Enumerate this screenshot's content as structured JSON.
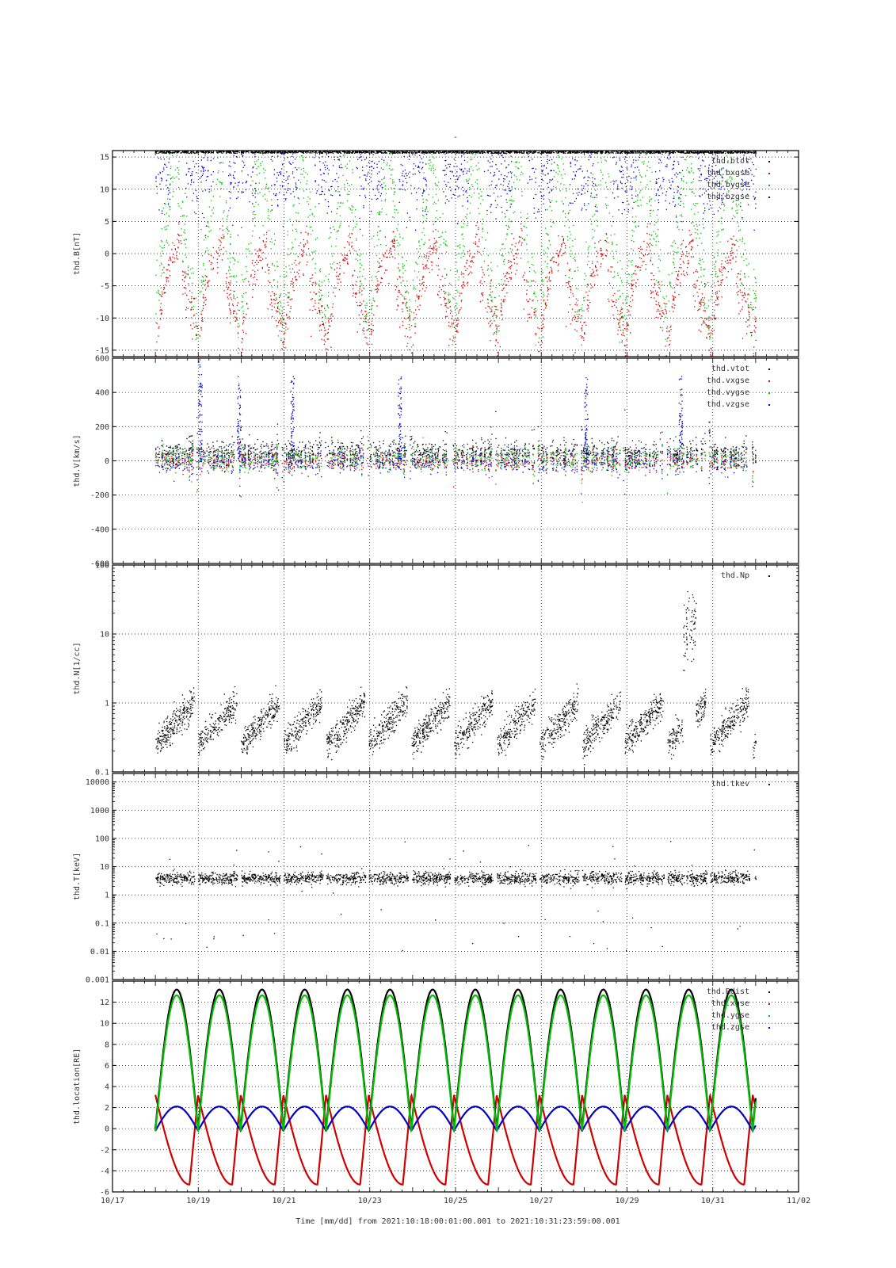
{
  "figure": {
    "title": "-",
    "time_axis": {
      "label": "Time [mm/dd]  from 2021:10:18:00:01:00.001  to  2021:10:31:23:59:00.001",
      "range_days": [
        0,
        16
      ],
      "tick_labels": [
        "10/17",
        "10/19",
        "10/21",
        "10/23",
        "10/25",
        "10/27",
        "10/29",
        "10/31",
        "11/02"
      ],
      "data_start_day": 1.0,
      "data_end_day": 15.0
    },
    "colors": {
      "black": "#000000",
      "red": "#d00000",
      "green": "#00c000",
      "blue": "#0000c8"
    }
  },
  "chart_data": [
    {
      "type": "scatter",
      "ylabel": "thd.B[nT]",
      "ylim": [
        -16,
        16
      ],
      "yticks": [
        -15,
        -10,
        -5,
        0,
        5,
        10,
        15
      ],
      "ytick_labels": [
        "-15",
        "-10",
        "-5",
        "0",
        "5",
        "10",
        "15"
      ],
      "grid": true,
      "legend_position": "top-right",
      "series": [
        {
          "name": "thd.btot",
          "color": "#000000",
          "values_note": "mostly above 16 nT (clipped at top)"
        },
        {
          "name": "thd.bxgse",
          "color": "#d00000"
        },
        {
          "name": "thd.bygse",
          "color": "#00c000"
        },
        {
          "name": "thd.bzgse",
          "color": "#0000c8"
        }
      ]
    },
    {
      "type": "scatter",
      "ylabel": "thd.V[km/s]",
      "ylim": [
        -600,
        600
      ],
      "yticks": [
        -600,
        -400,
        -200,
        0,
        200,
        400,
        600
      ],
      "ytick_labels": [
        "-600",
        "-400",
        "-200",
        "0",
        "200",
        "400",
        "600"
      ],
      "grid": true,
      "legend_position": "top-right",
      "series": [
        {
          "name": "thd.vtot",
          "color": "#000000"
        },
        {
          "name": "thd.vxgse",
          "color": "#d00000"
        },
        {
          "name": "thd.vygse",
          "color": "#00c000"
        },
        {
          "name": "thd.vzgse",
          "color": "#0000c8"
        }
      ]
    },
    {
      "type": "scatter",
      "ylabel": "thd.N[1/cc]",
      "yscale": "log",
      "ylim": [
        0.1,
        100
      ],
      "yticks": [
        0.1,
        1,
        10,
        100
      ],
      "ytick_labels": [
        "0.1",
        "1",
        "10",
        "100"
      ],
      "grid": true,
      "legend_position": "top-right",
      "series": [
        {
          "name": "thd.Np",
          "color": "#000000"
        }
      ]
    },
    {
      "type": "scatter",
      "ylabel": "thd.T[keV]",
      "yscale": "log",
      "ylim": [
        0.001,
        20000
      ],
      "yticks": [
        0.001,
        0.01,
        0.1,
        1,
        10,
        100,
        1000,
        10000
      ],
      "ytick_labels": [
        "0.001",
        "0.01",
        "0.1",
        "1",
        "10",
        "100",
        "1000",
        "10000"
      ],
      "grid": true,
      "legend_position": "top-right",
      "series": [
        {
          "name": "thd.tkev",
          "color": "#000000"
        }
      ]
    },
    {
      "type": "line",
      "ylabel": "thd.location[RE]",
      "ylim": [
        -6,
        14
      ],
      "yticks": [
        -6,
        -4,
        -2,
        0,
        2,
        4,
        6,
        8,
        10,
        12
      ],
      "ytick_labels": [
        "-6",
        "-4",
        "-2",
        "0",
        "2",
        "4",
        "6",
        "8",
        "10",
        "12"
      ],
      "grid": true,
      "legend_position": "top-right",
      "orbit_period_days": 0.995,
      "series": [
        {
          "name": "thd.Rdist",
          "color": "#000000",
          "apogee": 13.2,
          "perigee": 0
        },
        {
          "name": "thd.xgse",
          "color": "#d00000",
          "max": 3.2,
          "min": -5.3
        },
        {
          "name": "thd.ygse",
          "color": "#00c000",
          "apogee": 12.9,
          "perigee": 0
        },
        {
          "name": "thd.zgse",
          "color": "#0000c8",
          "max": 2.1,
          "min": -0.2
        }
      ]
    }
  ]
}
